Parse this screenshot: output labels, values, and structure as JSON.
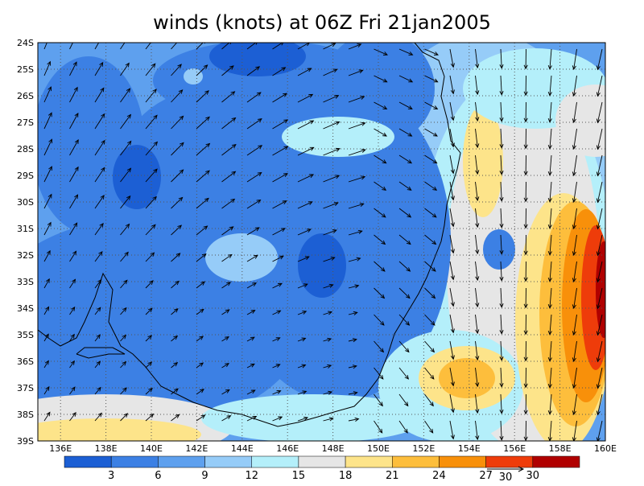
{
  "title": "winds (knots) at 06Z Fri 21jan2005",
  "lat_labels": [
    "24S",
    "25S",
    "26S",
    "27S",
    "28S",
    "29S",
    "30S",
    "31S",
    "32S",
    "33S",
    "34S",
    "35S",
    "36S",
    "37S",
    "38S",
    "39S"
  ],
  "lon_labels": [
    "136E",
    "138E",
    "140E",
    "142E",
    "144E",
    "146E",
    "148E",
    "150E",
    "152E",
    "154E",
    "156E",
    "158E",
    "160E"
  ],
  "colorbar": {
    "levels": [
      3,
      6,
      9,
      12,
      15,
      18,
      21,
      24,
      27,
      30
    ],
    "colors": [
      "#1c5fd4",
      "#3c80e4",
      "#5ea0ee",
      "#96ccf8",
      "#b4effa",
      "#e6e6e6",
      "#fde48a",
      "#fdbe3c",
      "#f8900a",
      "#ee3c0a",
      "#b00000"
    ]
  },
  "reference_vector": {
    "label": "30"
  }
}
